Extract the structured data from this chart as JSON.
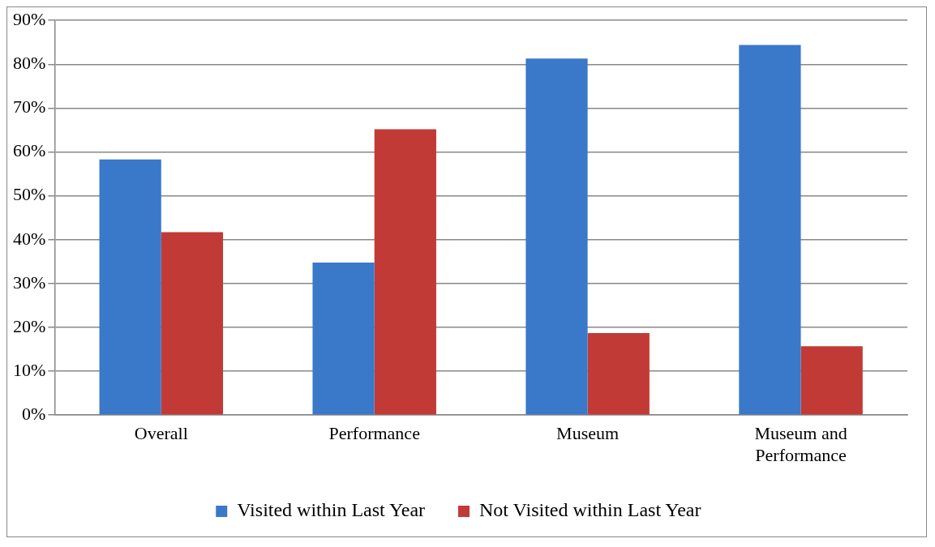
{
  "chart_data": {
    "type": "bar",
    "categories": [
      "Overall",
      "Performance",
      "Museum",
      "Museum and Performance"
    ],
    "series": [
      {
        "name": "Visited within Last Year",
        "color": "#3a78c9",
        "values": [
          58.3,
          34.8,
          81.3,
          84.4
        ]
      },
      {
        "name": "Not Visited within Last Year",
        "color": "#c23a36",
        "values": [
          41.7,
          65.2,
          18.7,
          15.7
        ]
      }
    ],
    "ylim": [
      0,
      90
    ],
    "yticks": [
      {
        "value": 0,
        "label": "0%"
      },
      {
        "value": 10,
        "label": "10%"
      },
      {
        "value": 20,
        "label": "20%"
      },
      {
        "value": 30,
        "label": "30%"
      },
      {
        "value": 40,
        "label": "40%"
      },
      {
        "value": 50,
        "label": "50%"
      },
      {
        "value": 60,
        "label": "60%"
      },
      {
        "value": 70,
        "label": "70%"
      },
      {
        "value": 80,
        "label": "80%"
      },
      {
        "value": 90,
        "label": "90%"
      }
    ],
    "grid": "y",
    "legend": "bottom"
  }
}
